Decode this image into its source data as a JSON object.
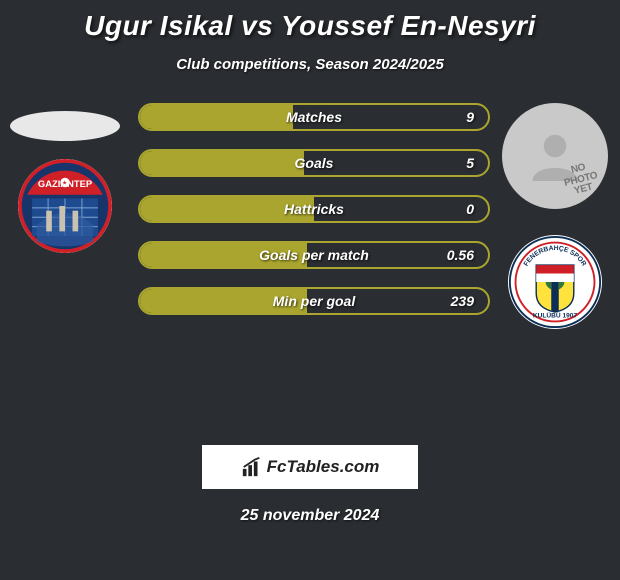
{
  "header": {
    "title": "Ugur Isikal vs Youssef En-Nesyri",
    "subtitle": "Club competitions, Season 2024/2025"
  },
  "colors": {
    "background": "#2a2d31",
    "bar_border": "#a9a52e",
    "bar_fill": "#a9a52e",
    "left_oval": "#e8e8e8",
    "right_placeholder": "#c9c9c9"
  },
  "players": {
    "left": {
      "has_photo": false,
      "club": {
        "name": "Gaziantep",
        "badge_bg": "#18356b",
        "badge_accent": "#d02027",
        "badge_text": "GAZIANTEP"
      }
    },
    "right": {
      "has_photo": false,
      "placeholder_text": "NO PHOTO YET",
      "club": {
        "name": "Fenerbahce",
        "badge_bg": "#ffffff",
        "badge_accent": "#ffe23b",
        "badge_stripe": "#0b2e57",
        "badge_text": "FENERBAHÇE SPOR KULÜBÜ 1907"
      }
    }
  },
  "stats": [
    {
      "label": "Matches",
      "value": "9",
      "fill_pct": 44
    },
    {
      "label": "Goals",
      "value": "5",
      "fill_pct": 47
    },
    {
      "label": "Hattricks",
      "value": "0",
      "fill_pct": 50
    },
    {
      "label": "Goals per match",
      "value": "0.56",
      "fill_pct": 48
    },
    {
      "label": "Min per goal",
      "value": "239",
      "fill_pct": 48
    }
  ],
  "footer": {
    "brand": "FcTables.com",
    "date": "25 november 2024"
  },
  "typography": {
    "title_fontsize": 28,
    "subtitle_fontsize": 15,
    "stat_label_fontsize": 14,
    "date_fontsize": 16
  }
}
